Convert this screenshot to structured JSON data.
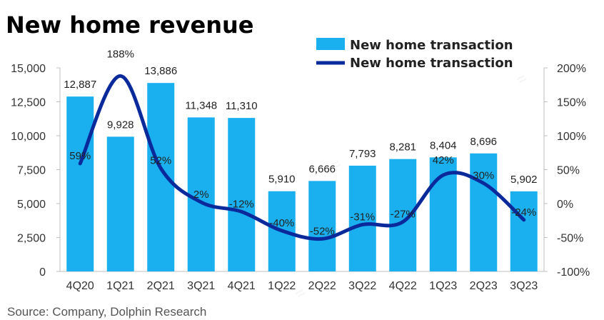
{
  "chart_data": {
    "type": "bar",
    "title": "New home revenue",
    "categories": [
      "4Q20",
      "1Q21",
      "2Q21",
      "3Q21",
      "4Q21",
      "1Q22",
      "2Q22",
      "3Q22",
      "4Q22",
      "1Q23",
      "2Q23",
      "3Q23"
    ],
    "series": [
      {
        "name": "New home transaction",
        "type": "bar",
        "axis": "left",
        "color": "#1ab0f0",
        "values": [
          12887,
          9928,
          13886,
          11348,
          11310,
          5910,
          6666,
          7793,
          8281,
          8404,
          8696,
          5902
        ],
        "labels": [
          "12,887",
          "9,928",
          "13,886",
          "11,348",
          "11,310",
          "5,910",
          "6,666",
          "7,793",
          "8,281",
          "8,404",
          "8,696",
          "5,902"
        ]
      },
      {
        "name": "New home transaction",
        "type": "line",
        "axis": "right",
        "color": "#0a2a9c",
        "values": [
          59,
          188,
          52,
          2,
          -12,
          -40,
          -52,
          -31,
          -27,
          42,
          30,
          -24
        ],
        "labels": [
          "59%",
          "188%",
          "52%",
          "2%",
          "-12%",
          "-40%",
          "-52%",
          "-31%",
          "-27%",
          "42%",
          "30%",
          "-24%"
        ]
      }
    ],
    "y_left": {
      "min": 0,
      "max": 15000,
      "ticks": [
        "0",
        "2,500",
        "5,000",
        "7,500",
        "10,000",
        "12,500",
        "15,000"
      ]
    },
    "y_right": {
      "min": -100,
      "max": 200,
      "ticks": [
        "-100%",
        "-50%",
        "0%",
        "50%",
        "100%",
        "150%",
        "200%"
      ]
    },
    "grid": false,
    "legend": "top-right",
    "source": "Source: Company, Dolphin Research"
  }
}
